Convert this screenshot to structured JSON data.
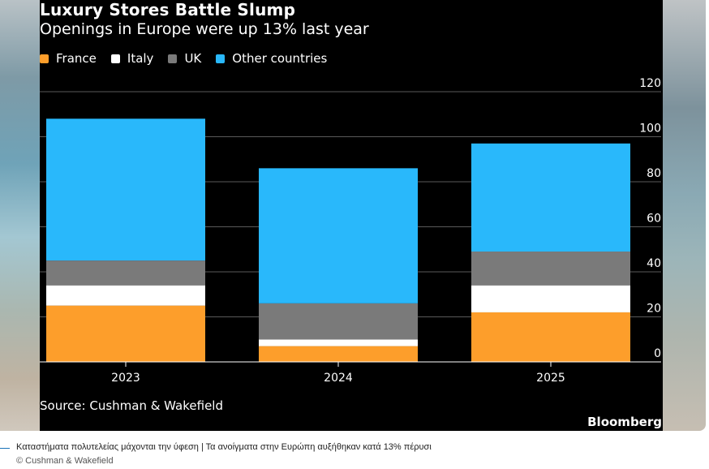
{
  "header": {
    "title": "Luxury Stores Battle Slump",
    "subtitle": "Openings in Europe were up 13% last year"
  },
  "footer": {
    "source": "Source: Cushman & Wakefield",
    "brand": "Bloomberg"
  },
  "caption": {
    "text": "Καταστήματα πολυτελείας μάχονται την ύφεση | Τα ανοίγματα στην Ευρώπη αυξήθηκαν κατά 13% πέρυσι",
    "credit": "© Cushman & Wakefield"
  },
  "chart_data": {
    "type": "bar",
    "stacked": true,
    "title": "Luxury Stores Battle Slump",
    "subtitle": "Openings in Europe were up 13% last year",
    "xlabel": "",
    "ylabel": "",
    "categories": [
      "2023",
      "2024",
      "2025"
    ],
    "series": [
      {
        "name": "France",
        "color": "#fd9e2b",
        "values": [
          25,
          7,
          22
        ]
      },
      {
        "name": "Italy",
        "color": "#ffffff",
        "values": [
          9,
          3,
          12
        ]
      },
      {
        "name": "UK",
        "color": "#7a7a7a",
        "values": [
          11,
          16,
          15
        ]
      },
      {
        "name": "Other countries",
        "color": "#29b8fb",
        "values": [
          63,
          60,
          48
        ]
      }
    ],
    "ylim": [
      0,
      120
    ],
    "yticks": [
      0,
      20,
      40,
      60,
      80,
      100,
      120
    ],
    "y_axis_side": "right",
    "grid": true,
    "legend_placement": "top-left"
  }
}
